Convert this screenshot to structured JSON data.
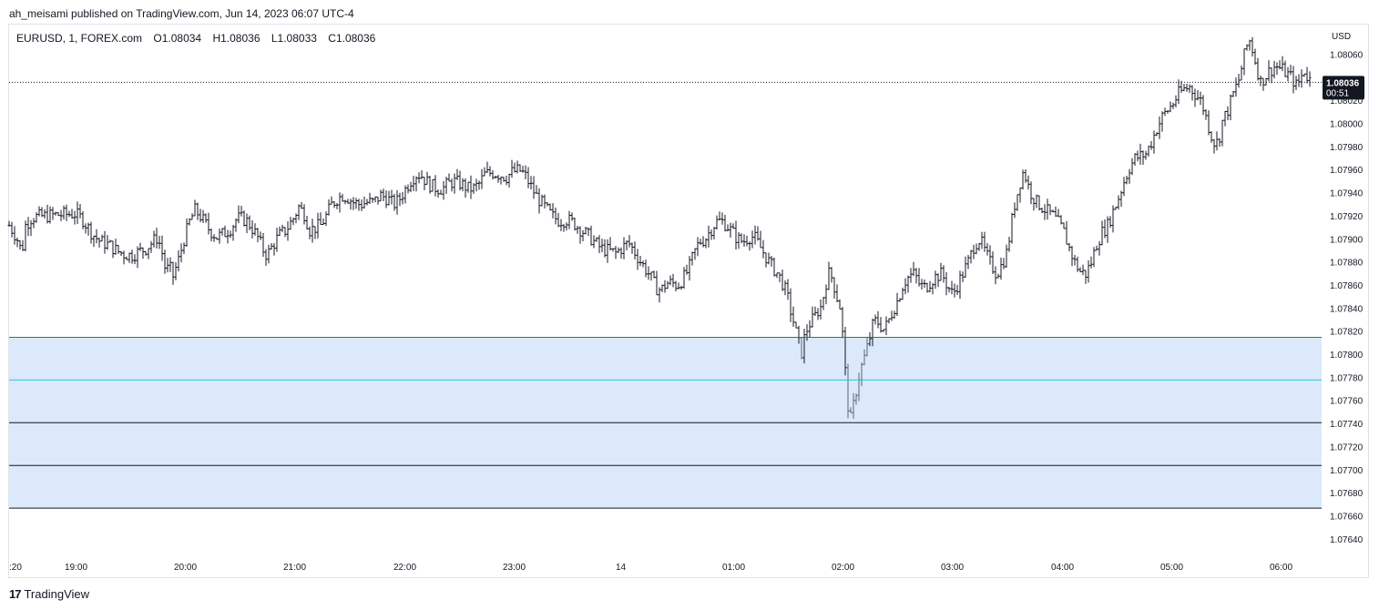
{
  "published_line": "ah_meisami published on TradingView.com, Jun 14, 2023 06:07 UTC-4",
  "legend": {
    "symbol": "EURUSD, 1, FOREX.com",
    "o_label": "O",
    "o_value": "1.08034",
    "h_label": "H",
    "h_value": "1.08036",
    "l_label": "L",
    "l_value": "1.08033",
    "c_label": "C",
    "c_value": "1.08036"
  },
  "footer": {
    "logo": "17",
    "brand": "TradingView"
  },
  "colors": {
    "candle": "#131722",
    "zone_fill": "#dbe9fb",
    "zone_top_line": "#2e7d32",
    "zone_mid_line": "#26c6da",
    "zone_lines": "#131722",
    "price_tag_bg": "#131722",
    "price_tag_text": "#ffffff"
  },
  "chart_data": {
    "type": "ohlc",
    "currency_label": "USD",
    "y_ticks": [
      "1.08060",
      "1.08020",
      "1.08000",
      "1.07980",
      "1.07960",
      "1.07940",
      "1.07920",
      "1.07900",
      "1.07880",
      "1.07860",
      "1.07840",
      "1.07820",
      "1.07800",
      "1.07780",
      "1.07760",
      "1.07740",
      "1.07720",
      "1.07700",
      "1.07680",
      "1.07660",
      "1.07640"
    ],
    "ylim": [
      1.0763,
      1.08086
    ],
    "x_ticks": [
      ":20",
      "19:00",
      "20:00",
      "21:00",
      "22:00",
      "23:00",
      "14",
      "01:00",
      "02:00",
      "03:00",
      "04:00",
      "05:00",
      "06:00"
    ],
    "last_price": "1.08036",
    "countdown": "00:51",
    "zone": {
      "top": 1.07815,
      "mid": 1.07778,
      "lines": [
        1.07741,
        1.07704,
        1.07667
      ]
    },
    "path": [
      [
        0,
        1.07912
      ],
      [
        8,
        1.07902
      ],
      [
        14,
        1.07888
      ],
      [
        18,
        1.07912
      ],
      [
        25,
        1.07919
      ],
      [
        50,
        1.07921
      ],
      [
        72,
        1.07922
      ],
      [
        80,
        1.07918
      ],
      [
        85,
        1.07912
      ],
      [
        92,
        1.07904
      ],
      [
        100,
        1.07898
      ],
      [
        110,
        1.07895
      ],
      [
        118,
        1.0789
      ],
      [
        126,
        1.07887
      ],
      [
        134,
        1.07886
      ],
      [
        142,
        1.07889
      ],
      [
        150,
        1.07892
      ],
      [
        158,
        1.07898
      ],
      [
        163,
        1.07902
      ],
      [
        168,
        1.07888
      ],
      [
        172,
        1.07872
      ],
      [
        176,
        1.07876
      ],
      [
        180,
        1.07868
      ],
      [
        186,
        1.07882
      ],
      [
        192,
        1.079
      ],
      [
        198,
        1.07915
      ],
      [
        204,
        1.07925
      ],
      [
        210,
        1.0792
      ],
      [
        214,
        1.07915
      ],
      [
        220,
        1.07908
      ],
      [
        228,
        1.07902
      ],
      [
        236,
        1.07905
      ],
      [
        244,
        1.0791
      ],
      [
        250,
        1.07918
      ],
      [
        256,
        1.07918
      ],
      [
        262,
        1.07915
      ],
      [
        268,
        1.07908
      ],
      [
        274,
        1.079
      ],
      [
        278,
        1.07892
      ],
      [
        283,
        1.07886
      ],
      [
        289,
        1.07894
      ],
      [
        296,
        1.07903
      ],
      [
        304,
        1.07908
      ],
      [
        312,
        1.07918
      ],
      [
        318,
        1.07928
      ],
      [
        324,
        1.07922
      ],
      [
        330,
        1.07908
      ],
      [
        336,
        1.0791
      ],
      [
        342,
        1.07912
      ],
      [
        348,
        1.0792
      ],
      [
        354,
        1.0793
      ],
      [
        360,
        1.07935
      ],
      [
        366,
        1.07938
      ],
      [
        372,
        1.07936
      ],
      [
        378,
        1.07932
      ],
      [
        386,
        1.0793
      ],
      [
        392,
        1.07932
      ],
      [
        400,
        1.07932
      ],
      [
        408,
        1.07938
      ],
      [
        416,
        1.07935
      ],
      [
        422,
        1.0793
      ],
      [
        428,
        1.07934
      ],
      [
        434,
        1.07942
      ],
      [
        440,
        1.0795
      ],
      [
        446,
        1.07956
      ],
      [
        452,
        1.07956
      ],
      [
        458,
        1.0795
      ],
      [
        464,
        1.07946
      ],
      [
        470,
        1.07944
      ],
      [
        476,
        1.07944
      ],
      [
        482,
        1.07948
      ],
      [
        488,
        1.0795
      ],
      [
        496,
        1.07948
      ],
      [
        504,
        1.07944
      ],
      [
        510,
        1.07944
      ],
      [
        516,
        1.07948
      ],
      [
        522,
        1.07956
      ],
      [
        530,
        1.07958
      ],
      [
        538,
        1.07956
      ],
      [
        546,
        1.07954
      ],
      [
        552,
        1.07958
      ],
      [
        560,
        1.0796
      ],
      [
        566,
        1.07956
      ],
      [
        574,
        1.07944
      ],
      [
        580,
        1.07936
      ],
      [
        588,
        1.07928
      ],
      [
        596,
        1.0792
      ],
      [
        604,
        1.07916
      ],
      [
        612,
        1.07917
      ],
      [
        620,
        1.07914
      ],
      [
        628,
        1.07908
      ],
      [
        636,
        1.07903
      ],
      [
        642,
        1.07898
      ],
      [
        650,
        1.07892
      ],
      [
        658,
        1.0789
      ],
      [
        666,
        1.07888
      ],
      [
        672,
        1.07892
      ],
      [
        680,
        1.07897
      ],
      [
        686,
        1.0789
      ],
      [
        692,
        1.07882
      ],
      [
        698,
        1.07875
      ],
      [
        704,
        1.07868
      ],
      [
        710,
        1.07858
      ],
      [
        716,
        1.07856
      ],
      [
        722,
        1.07862
      ],
      [
        728,
        1.07862
      ],
      [
        734,
        1.0786
      ],
      [
        740,
        1.07866
      ],
      [
        746,
        1.07874
      ],
      [
        752,
        1.07888
      ],
      [
        758,
        1.07898
      ],
      [
        764,
        1.079
      ],
      [
        770,
        1.07908
      ],
      [
        776,
        1.07915
      ],
      [
        782,
        1.07916
      ],
      [
        788,
        1.07912
      ],
      [
        794,
        1.07906
      ],
      [
        800,
        1.079
      ],
      [
        806,
        1.07898
      ],
      [
        812,
        1.07902
      ],
      [
        818,
        1.07902
      ],
      [
        824,
        1.07894
      ],
      [
        830,
        1.07886
      ],
      [
        836,
        1.07878
      ],
      [
        842,
        1.07872
      ],
      [
        848,
        1.07864
      ],
      [
        854,
        1.07852
      ],
      [
        858,
        1.07838
      ],
      [
        862,
        1.07826
      ],
      [
        866,
        1.07812
      ],
      [
        870,
        1.07802
      ],
      [
        874,
        1.07818
      ],
      [
        878,
        1.07826
      ],
      [
        884,
        1.07832
      ],
      [
        888,
        1.07838
      ],
      [
        892,
        1.07842
      ],
      [
        896,
        1.0786
      ],
      [
        900,
        1.0787
      ],
      [
        904,
        1.07866
      ],
      [
        908,
        1.07852
      ],
      [
        912,
        1.07842
      ],
      [
        916,
        1.0781
      ],
      [
        920,
        1.0776
      ],
      [
        924,
        1.07744
      ],
      [
        928,
        1.0776
      ],
      [
        932,
        1.07778
      ],
      [
        936,
        1.0779
      ],
      [
        940,
        1.078
      ],
      [
        944,
        1.07812
      ],
      [
        948,
        1.07825
      ],
      [
        952,
        1.0783
      ],
      [
        956,
        1.07826
      ],
      [
        960,
        1.07822
      ],
      [
        964,
        1.07826
      ],
      [
        970,
        1.07838
      ],
      [
        976,
        1.07848
      ],
      [
        982,
        1.07862
      ],
      [
        988,
        1.07868
      ],
      [
        994,
        1.0787
      ],
      [
        1000,
        1.0786
      ],
      [
        1006,
        1.07858
      ],
      [
        1012,
        1.07864
      ],
      [
        1018,
        1.07868
      ],
      [
        1024,
        1.0787
      ],
      [
        1030,
        1.0786
      ],
      [
        1036,
        1.07852
      ],
      [
        1042,
        1.07862
      ],
      [
        1048,
        1.07872
      ],
      [
        1054,
        1.07882
      ],
      [
        1060,
        1.07896
      ],
      [
        1066,
        1.079
      ],
      [
        1072,
        1.07888
      ],
      [
        1078,
        1.07878
      ],
      [
        1084,
        1.0787
      ],
      [
        1090,
        1.07878
      ],
      [
        1096,
        1.0789
      ],
      [
        1100,
        1.07912
      ],
      [
        1104,
        1.0793
      ],
      [
        1110,
        1.0795
      ],
      [
        1114,
        1.0796
      ],
      [
        1118,
        1.07948
      ],
      [
        1122,
        1.0794
      ],
      [
        1128,
        1.07932
      ],
      [
        1134,
        1.07928
      ],
      [
        1140,
        1.07924
      ],
      [
        1146,
        1.0792
      ],
      [
        1152,
        1.07914
      ],
      [
        1158,
        1.07906
      ],
      [
        1164,
        1.07892
      ],
      [
        1170,
        1.0788
      ],
      [
        1176,
        1.07872
      ],
      [
        1182,
        1.0787
      ],
      [
        1188,
        1.0788
      ],
      [
        1194,
        1.07896
      ],
      [
        1200,
        1.07906
      ],
      [
        1206,
        1.07912
      ],
      [
        1212,
        1.07924
      ],
      [
        1218,
        1.07936
      ],
      [
        1224,
        1.0795
      ],
      [
        1230,
        1.07962
      ],
      [
        1236,
        1.0797
      ],
      [
        1242,
        1.07972
      ],
      [
        1248,
        1.07974
      ],
      [
        1254,
        1.07984
      ],
      [
        1260,
        1.07996
      ],
      [
        1266,
        1.08006
      ],
      [
        1272,
        1.08012
      ],
      [
        1278,
        1.08018
      ],
      [
        1284,
        1.08026
      ],
      [
        1290,
        1.0803
      ],
      [
        1296,
        1.08032
      ],
      [
        1302,
        1.08026
      ],
      [
        1308,
        1.0802
      ],
      [
        1312,
        1.08012
      ],
      [
        1316,
        1.08
      ],
      [
        1320,
        1.0799
      ],
      [
        1324,
        1.07982
      ],
      [
        1328,
        1.07986
      ],
      [
        1332,
        1.08002
      ],
      [
        1338,
        1.08012
      ],
      [
        1344,
        1.08026
      ],
      [
        1350,
        1.08038
      ],
      [
        1354,
        1.08052
      ],
      [
        1358,
        1.08066
      ],
      [
        1362,
        1.08072
      ],
      [
        1366,
        1.08062
      ],
      [
        1370,
        1.08048
      ],
      [
        1374,
        1.08036
      ],
      [
        1378,
        1.0804
      ],
      [
        1384,
        1.08046
      ],
      [
        1390,
        1.0805
      ],
      [
        1396,
        1.08048
      ],
      [
        1402,
        1.08044
      ],
      [
        1408,
        1.0804
      ],
      [
        1414,
        1.08032
      ],
      [
        1418,
        1.0804
      ],
      [
        1422,
        1.08046
      ],
      [
        1426,
        1.0804
      ],
      [
        1430,
        1.08036
      ]
    ]
  }
}
